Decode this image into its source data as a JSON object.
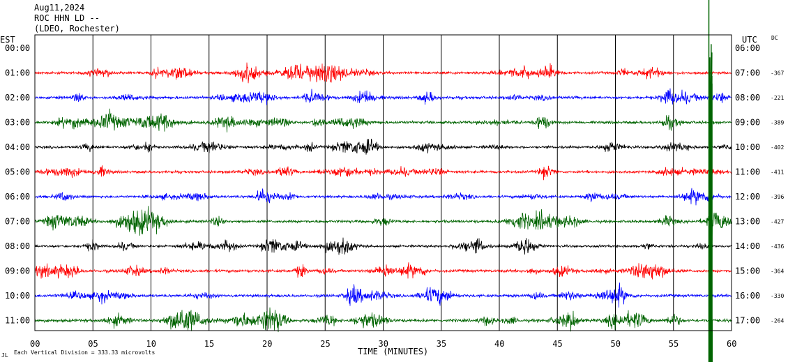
{
  "header": {
    "date": "Aug11,2024",
    "station": "ROC HHN LD --",
    "network": "(LDEO, Rochester)"
  },
  "left_axis_label": "EST",
  "right_axis_label": "UTC",
  "dc_label": "DC",
  "xlabel": "TIME (MINUTES)",
  "footnote": "Each Vertical Division =  333.33 microvolts",
  "chart_data": {
    "type": "line",
    "title": "",
    "xlabel": "TIME (MINUTES)",
    "xlim": [
      0,
      60
    ],
    "x_ticks": [
      "00",
      "05",
      "10",
      "15",
      "20",
      "25",
      "30",
      "35",
      "40",
      "45",
      "50",
      "55",
      "60"
    ],
    "rows": [
      {
        "est": "00:00",
        "utc": "06:00",
        "dc": "",
        "color": "",
        "amp": 0
      },
      {
        "est": "01:00",
        "utc": "07:00",
        "dc": "-367",
        "color": "#ff0000",
        "amp": 0.9
      },
      {
        "est": "02:00",
        "utc": "08:00",
        "dc": "-221",
        "color": "#0000ff",
        "amp": 1.0
      },
      {
        "est": "03:00",
        "utc": "09:00",
        "dc": "-389",
        "color": "#006400",
        "amp": 1.0
      },
      {
        "est": "04:00",
        "utc": "10:00",
        "dc": "-402",
        "color": "#000000",
        "amp": 0.9
      },
      {
        "est": "05:00",
        "utc": "11:00",
        "dc": "-411",
        "color": "#ff0000",
        "amp": 0.9
      },
      {
        "est": "06:00",
        "utc": "12:00",
        "dc": "-396",
        "color": "#0000ff",
        "amp": 0.9
      },
      {
        "est": "07:00",
        "utc": "13:00",
        "dc": "-427",
        "color": "#006400",
        "amp": 1.0
      },
      {
        "est": "08:00",
        "utc": "14:00",
        "dc": "-436",
        "color": "#000000",
        "amp": 0.9
      },
      {
        "est": "09:00",
        "utc": "15:00",
        "dc": "-364",
        "color": "#ff0000",
        "amp": 1.0
      },
      {
        "est": "10:00",
        "utc": "16:00",
        "dc": "-330",
        "color": "#0000ff",
        "amp": 1.0
      },
      {
        "est": "11:00",
        "utc": "17:00",
        "dc": "-264",
        "color": "#006400",
        "amp": 1.1
      }
    ],
    "event": {
      "minute": 58.2,
      "color": "#006400"
    },
    "grid": true
  }
}
